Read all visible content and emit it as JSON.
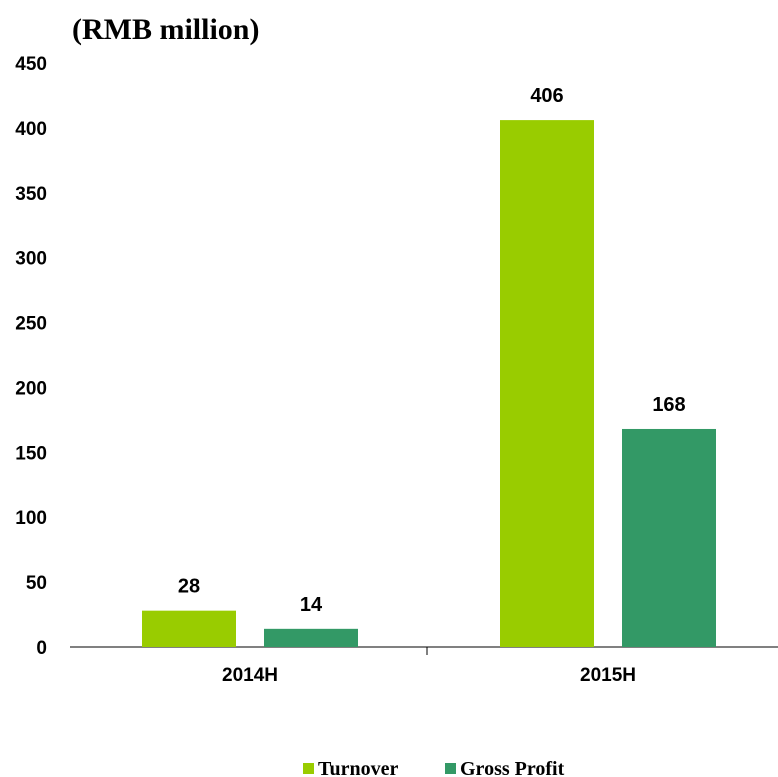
{
  "chart_data": {
    "type": "bar",
    "unit_label": "(RMB million)",
    "categories": [
      "2014H",
      "2015H"
    ],
    "series": [
      {
        "name": "Turnover",
        "values": [
          28,
          406
        ],
        "color": "#99cc00"
      },
      {
        "name": "Gross Profit",
        "values": [
          14,
          168
        ],
        "color": "#339966"
      }
    ],
    "ylim": [
      0,
      450
    ],
    "yticks": [
      0,
      50,
      100,
      150,
      200,
      250,
      300,
      350,
      400,
      450
    ],
    "grid": false,
    "legend_position": "bottom-center"
  }
}
